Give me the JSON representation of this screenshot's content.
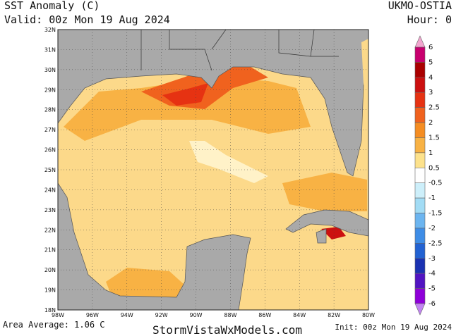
{
  "header": {
    "title": "SST Anomaly (C)",
    "valid": "Valid: 00z Mon 19 Aug 2024",
    "model": "UKMO-OSTIA",
    "hour": "Hour: 0"
  },
  "map": {
    "lat_labels": [
      "18N",
      "19N",
      "20N",
      "21N",
      "22N",
      "23N",
      "24N",
      "25N",
      "26N",
      "27N",
      "28N",
      "29N",
      "30N",
      "31N",
      "32N"
    ],
    "lon_labels": [
      "98W",
      "96W",
      "94W",
      "92W",
      "90W",
      "88W",
      "86W",
      "84W",
      "82W",
      "80W"
    ]
  },
  "colorbar": {
    "levels": [
      6,
      5,
      4,
      3,
      2.5,
      2,
      1.5,
      1,
      0.5,
      -0.5,
      -1,
      -1.5,
      -2,
      -2.5,
      -3,
      -4,
      -5,
      -6
    ],
    "colors": [
      "#f2a6cf",
      "#c8006e",
      "#aa0000",
      "#cc1010",
      "#e63212",
      "#f0621e",
      "#f58d22",
      "#f8b244",
      "#fde28c",
      "#ffffff",
      "#cdeffa",
      "#a2dcf5",
      "#6cb5f0",
      "#3e8de6",
      "#2262d2",
      "#1a32b2",
      "#5214c2",
      "#8e00d8",
      "#c284f2"
    ]
  },
  "footer": {
    "area_average": "Area Average: 1.06 C",
    "site": "StormVistaWxModels.com",
    "init": "Init: 00z Mon 19 Aug 2024"
  }
}
